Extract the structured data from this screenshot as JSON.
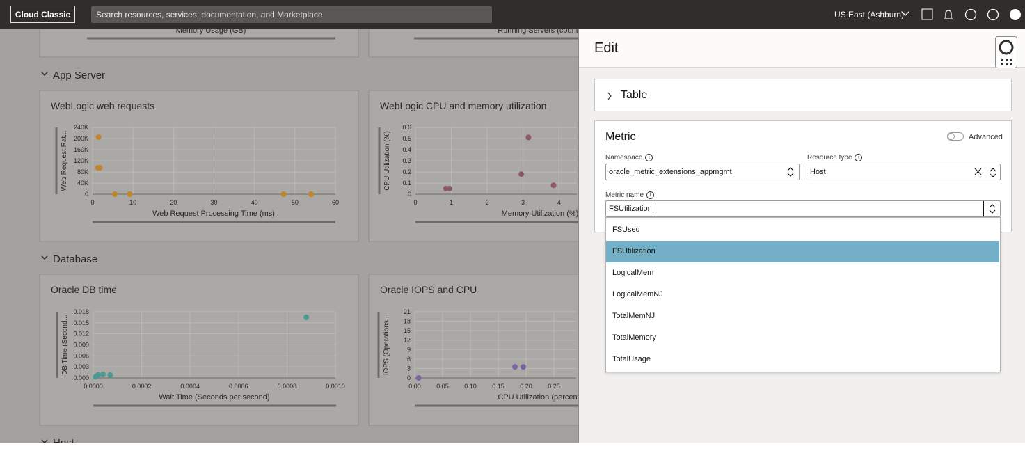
{
  "header": {
    "brand": "Cloud Classic",
    "search": "Search resources, services, documentation, and Marketplace",
    "region": "US East (Ashburn)"
  },
  "dashboard": {
    "top_labels": [
      "Memory Usage (GB)",
      "Running Servers (count"
    ],
    "sections": [
      "App Server",
      "Database",
      "Host"
    ]
  },
  "chart_data": [
    {
      "type": "scatter",
      "title": "WebLogic web requests",
      "x_label": "Web Request Processing Time (ms)",
      "y_label": "Web Request Rat...",
      "xlim": [
        0,
        60
      ],
      "ylim": [
        0,
        240000
      ],
      "xticks": [
        0,
        10,
        20,
        30,
        40,
        50,
        60
      ],
      "yticks": [
        0,
        {
          "value": 40000,
          "label": "40K"
        },
        {
          "value": 80000,
          "label": "80K"
        },
        {
          "value": 120000,
          "label": "120K"
        },
        {
          "value": 160000,
          "label": "160K"
        },
        {
          "value": 200000,
          "label": "200K"
        },
        {
          "value": 240000,
          "label": "240K"
        }
      ],
      "grid": true,
      "color": "#c0862f",
      "x": [
        1.5,
        1.3,
        1.8,
        5.5,
        9.2,
        47.2,
        54
      ],
      "values": [
        205000,
        95000,
        95000,
        0,
        0,
        0,
        0
      ]
    },
    {
      "type": "scatter",
      "title": "WebLogic CPU and memory utilization",
      "x_label": "Memory Utilization (%)",
      "y_label": "CPU Utilization (%)",
      "xlim": [
        0,
        4.5
      ],
      "ylim": [
        0,
        0.6
      ],
      "xticks": [
        0,
        1,
        2,
        3,
        4
      ],
      "yticks": [
        0,
        0.1,
        0.2,
        0.3,
        0.4,
        0.5,
        0.6
      ],
      "grid": true,
      "color": "#8c5766",
      "x": [
        0.85,
        0.95,
        2.95,
        3.15,
        3.85
      ],
      "values": [
        0.05,
        0.05,
        0.18,
        0.51,
        0.08
      ]
    },
    {
      "type": "scatter",
      "title": "Oracle DB time",
      "x_label": "Wait Time (Seconds per second)",
      "y_label": "DB Time (Second...",
      "xlim": [
        0,
        0.001
      ],
      "ylim": [
        0,
        0.018
      ],
      "xticks": [
        {
          "value": 0,
          "label": "0.0000"
        },
        0.0002,
        0.0004,
        0.0006,
        0.0008,
        {
          "value": 0.001,
          "label": "0.0010"
        }
      ],
      "yticks": [
        {
          "value": 0,
          "label": "0.000"
        },
        0.003,
        0.006,
        0.009,
        0.012,
        0.015,
        0.018
      ],
      "grid": true,
      "color": "#4d9893",
      "x": [
        0.00088,
        1e-05,
        2e-05,
        4e-05,
        7e-05
      ],
      "values": [
        0.0165,
        0.0003,
        0.0008,
        0.001,
        0.0008
      ]
    },
    {
      "type": "scatter",
      "title": "Oracle IOPS and CPU",
      "x_label": "CPU Utilization (percent",
      "y_label": "IOPS (Operations...",
      "xlim": [
        0,
        0.29
      ],
      "ylim": [
        0,
        21
      ],
      "xticks": [
        {
          "value": 0,
          "label": "0.00"
        },
        0.05,
        {
          "value": 0.1,
          "label": "0.10"
        },
        0.15,
        {
          "value": 0.2,
          "label": "0.20"
        },
        0.25
      ],
      "yticks": [
        0,
        3,
        6,
        9,
        12,
        15,
        18,
        21
      ],
      "grid": true,
      "color": "#7a64a0",
      "x": [
        0.007,
        0.18,
        0.195
      ],
      "values": [
        0,
        3.5,
        3.5
      ]
    }
  ],
  "edit_panel": {
    "title": "Edit",
    "table_section": "Table",
    "metric_section": "Metric",
    "advanced": "Advanced",
    "namespace": {
      "label": "Namespace",
      "value": "oracle_metric_extensions_appmgmt"
    },
    "resource_type": {
      "label": "Resource type",
      "value": "Host"
    },
    "metric_name": {
      "label": "Metric name",
      "value": "FSUtilization"
    },
    "options": [
      "FSUsed",
      "FSUtilization",
      "LogicalMem",
      "LogicalMemNJ",
      "TotalMemNJ",
      "TotalMemory",
      "TotalUsage"
    ],
    "selected_option": 1
  }
}
